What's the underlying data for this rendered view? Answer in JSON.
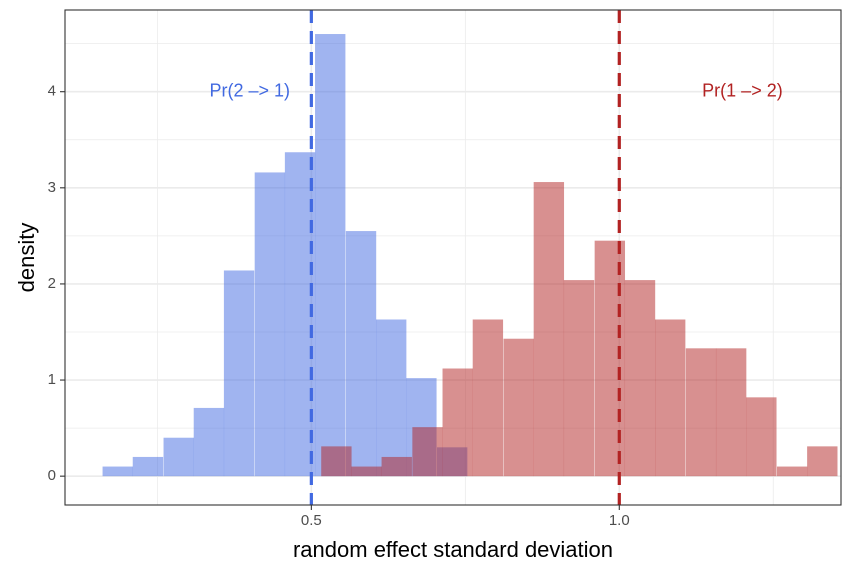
{
  "chart_data": {
    "type": "histogram",
    "xlabel": "random effect standard deviation",
    "ylabel": "density",
    "xlim": [
      0.1,
      1.36
    ],
    "ylim": [
      -0.3,
      4.85
    ],
    "x_ticks": [
      {
        "value": 0.5,
        "label": "0.5"
      },
      {
        "value": 1.0,
        "label": "1.0"
      }
    ],
    "y_ticks": [
      {
        "value": 0,
        "label": "0"
      },
      {
        "value": 1,
        "label": "1"
      },
      {
        "value": 2,
        "label": "2"
      },
      {
        "value": 3,
        "label": "3"
      },
      {
        "value": 4,
        "label": "4"
      }
    ],
    "x_minor_gridlines": [
      0.25,
      0.75,
      1.25
    ],
    "y_minor_gridlines": [
      0.5,
      1.5,
      2.5,
      3.5,
      4.5
    ],
    "grid": true,
    "series": [
      {
        "name": "Pr(2 -> 1)",
        "color": "#4169E1",
        "fill_opacity": 0.5,
        "bin_width": 0.0493,
        "bins": [
          {
            "x0": 0.161,
            "density": 0.1
          },
          {
            "x0": 0.21,
            "density": 0.2
          },
          {
            "x0": 0.26,
            "density": 0.4
          },
          {
            "x0": 0.309,
            "density": 0.71
          },
          {
            "x0": 0.358,
            "density": 2.14
          },
          {
            "x0": 0.408,
            "density": 3.16
          },
          {
            "x0": 0.457,
            "density": 3.37
          },
          {
            "x0": 0.506,
            "density": 4.6
          },
          {
            "x0": 0.556,
            "density": 2.55
          },
          {
            "x0": 0.605,
            "density": 1.63
          },
          {
            "x0": 0.654,
            "density": 1.02
          },
          {
            "x0": 0.704,
            "density": 0.3
          }
        ],
        "vline": 0.5,
        "annotation": {
          "text": "Pr(2 –> 1)",
          "x": 0.4,
          "y": 4.0
        }
      },
      {
        "name": "Pr(1 -> 2)",
        "color": "#B22222",
        "fill_opacity": 0.5,
        "bin_width": 0.0493,
        "bins": [
          {
            "x0": 0.516,
            "density": 0.31
          },
          {
            "x0": 0.565,
            "density": 0.1
          },
          {
            "x0": 0.614,
            "density": 0.2
          },
          {
            "x0": 0.664,
            "density": 0.51
          },
          {
            "x0": 0.713,
            "density": 1.12
          },
          {
            "x0": 0.762,
            "density": 1.63
          },
          {
            "x0": 0.812,
            "density": 1.43
          },
          {
            "x0": 0.861,
            "density": 3.06
          },
          {
            "x0": 0.91,
            "density": 2.04
          },
          {
            "x0": 0.96,
            "density": 2.45
          },
          {
            "x0": 1.009,
            "density": 2.04
          },
          {
            "x0": 1.058,
            "density": 1.63
          },
          {
            "x0": 1.108,
            "density": 1.33
          },
          {
            "x0": 1.157,
            "density": 1.33
          },
          {
            "x0": 1.206,
            "density": 0.82
          },
          {
            "x0": 1.256,
            "density": 0.1
          },
          {
            "x0": 1.305,
            "density": 0.31
          }
        ],
        "vline": 1.0,
        "annotation": {
          "text": "Pr(1 –> 2)",
          "x": 1.2,
          "y": 4.0
        }
      }
    ]
  }
}
